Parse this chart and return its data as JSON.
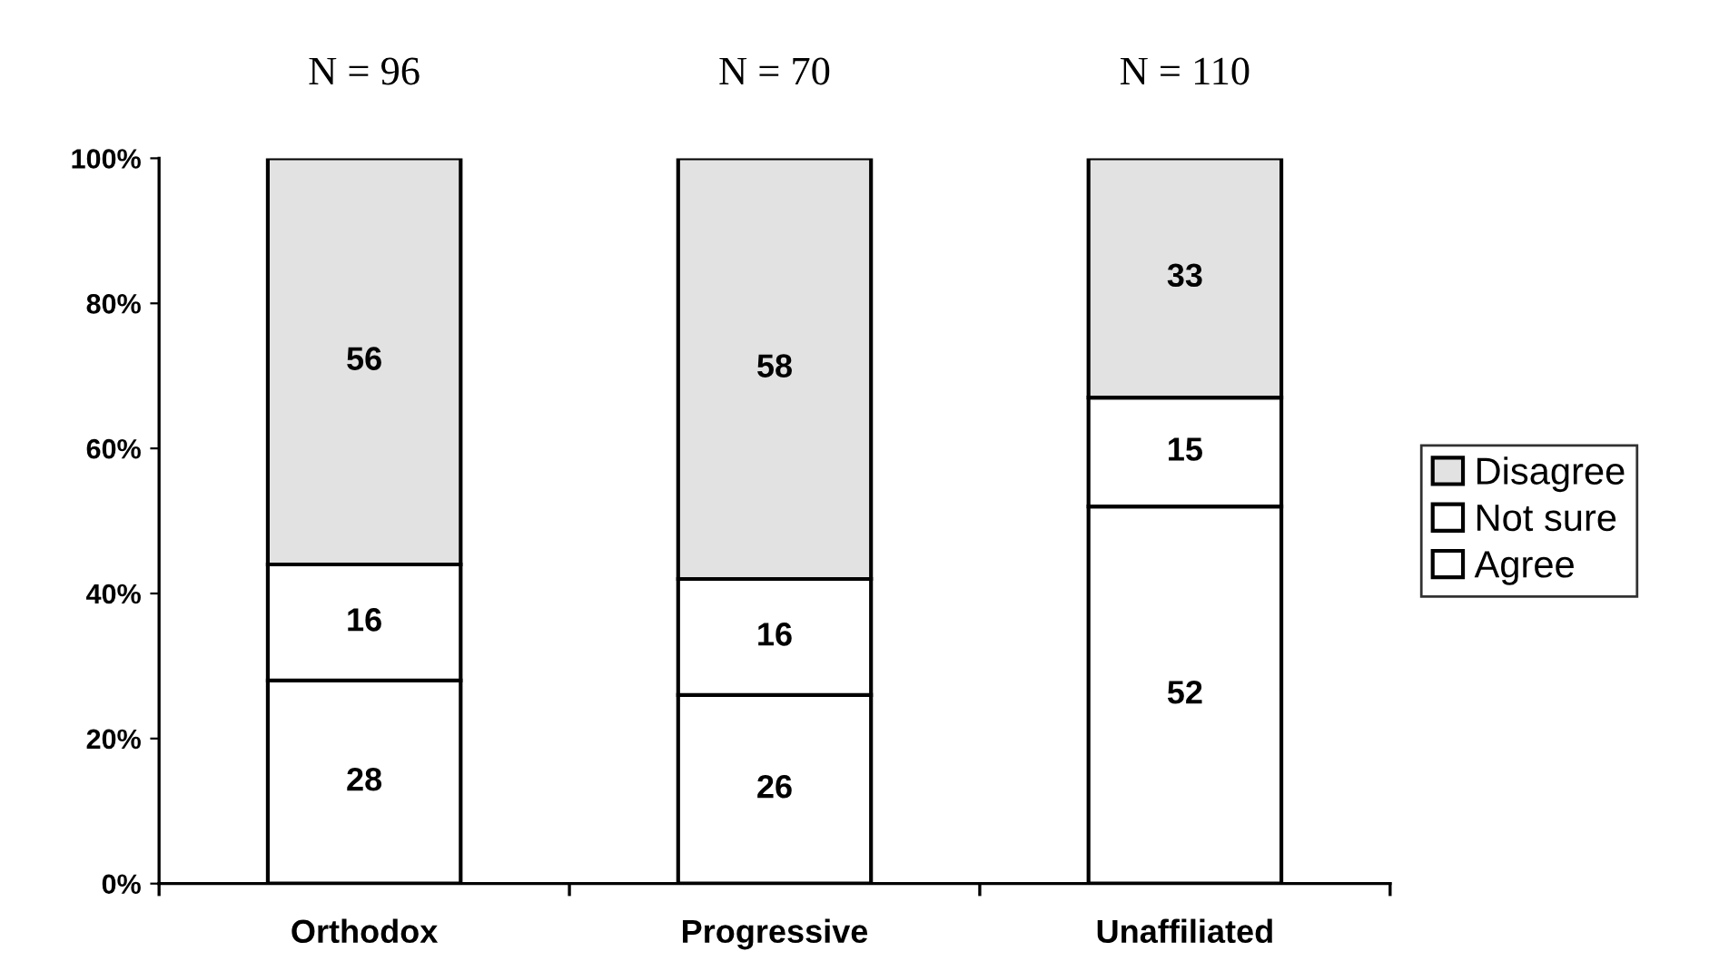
{
  "chart_data": {
    "type": "bar",
    "stacked": true,
    "categories": [
      "Orthodox",
      "Progressive",
      "Unaffiliated"
    ],
    "series": [
      {
        "name": "Agree",
        "color": "#ffffff",
        "values": [
          28,
          26,
          52
        ]
      },
      {
        "name": "Not sure",
        "color": "#ffffff",
        "values": [
          16,
          16,
          15
        ]
      },
      {
        "name": "Disagree",
        "color": "#e2e2e2",
        "values": [
          56,
          58,
          33
        ]
      }
    ],
    "ylim": [
      0,
      100
    ],
    "yticks": [
      {
        "value": 0,
        "label": "0%"
      },
      {
        "value": 20,
        "label": "20%"
      },
      {
        "value": 40,
        "label": "40%"
      },
      {
        "value": 60,
        "label": "60%"
      },
      {
        "value": 80,
        "label": "80%"
      },
      {
        "value": 100,
        "label": "100%"
      }
    ],
    "annotations": [
      "N = 96",
      "N = 70",
      "N = 110"
    ],
    "data_labels": true,
    "grid": false,
    "legend": "right"
  }
}
